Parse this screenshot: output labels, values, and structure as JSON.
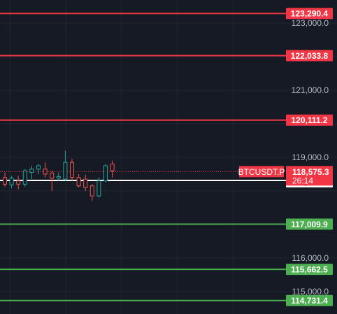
{
  "chart_data": {
    "type": "candlestick",
    "symbol": "BTCUSDT.P",
    "price_axis": {
      "min": 114500,
      "max": 123500,
      "ticks": [
        {
          "value": 123000,
          "label": "123,000.0"
        },
        {
          "value": 121000,
          "label": "121,000.0"
        },
        {
          "value": 119000,
          "label": "119,000.0"
        },
        {
          "value": 116000,
          "label": "116,000.0"
        },
        {
          "value": 115000,
          "label": "115,000.0"
        }
      ]
    },
    "grid": true,
    "horizontal_levels": [
      {
        "value": 123290.4,
        "label": "123,290.4",
        "color": "#f23645"
      },
      {
        "value": 122033.8,
        "label": "122,033.8",
        "color": "#f23645"
      },
      {
        "value": 120111.2,
        "label": "120,111.2",
        "color": "#f23645"
      },
      {
        "value": 117009.9,
        "label": "117,009.9",
        "color": "#4caf50"
      },
      {
        "value": 115662.5,
        "label": "115,662.5",
        "color": "#4caf50"
      },
      {
        "value": 114731.4,
        "label": "114,731.4",
        "color": "#4caf50"
      }
    ],
    "current_price": {
      "value": 118575.3,
      "label": "118,575.3",
      "countdown": "26:14",
      "color": "#f23645"
    },
    "white_level": {
      "value": 118291.0,
      "label": "118,291.0",
      "color": "#ffffff"
    },
    "candles": [
      {
        "o": 118400,
        "h": 118550,
        "l": 118120,
        "c": 118200
      },
      {
        "o": 118180,
        "h": 118450,
        "l": 118080,
        "c": 118380
      },
      {
        "o": 118300,
        "h": 118450,
        "l": 118050,
        "c": 118200
      },
      {
        "o": 118200,
        "h": 118650,
        "l": 118120,
        "c": 118600
      },
      {
        "o": 118550,
        "h": 118750,
        "l": 118350,
        "c": 118650
      },
      {
        "o": 118650,
        "h": 118800,
        "l": 118500,
        "c": 118750
      },
      {
        "o": 118650,
        "h": 118850,
        "l": 118400,
        "c": 118500
      },
      {
        "o": 118530,
        "h": 118600,
        "l": 118000,
        "c": 118380
      },
      {
        "o": 118380,
        "h": 118550,
        "l": 118300,
        "c": 118430
      },
      {
        "o": 118350,
        "h": 119200,
        "l": 118300,
        "c": 118850
      },
      {
        "o": 118850,
        "h": 118950,
        "l": 118300,
        "c": 118400
      },
      {
        "o": 118400,
        "h": 118500,
        "l": 118100,
        "c": 118150
      },
      {
        "o": 118350,
        "h": 118480,
        "l": 118000,
        "c": 118100
      },
      {
        "o": 118150,
        "h": 118200,
        "l": 117700,
        "c": 117850
      },
      {
        "o": 117850,
        "h": 118400,
        "l": 117800,
        "c": 118300
      },
      {
        "o": 118300,
        "h": 118800,
        "l": 118250,
        "c": 118750
      },
      {
        "o": 118800,
        "h": 118900,
        "l": 118400,
        "c": 118600
      }
    ]
  }
}
